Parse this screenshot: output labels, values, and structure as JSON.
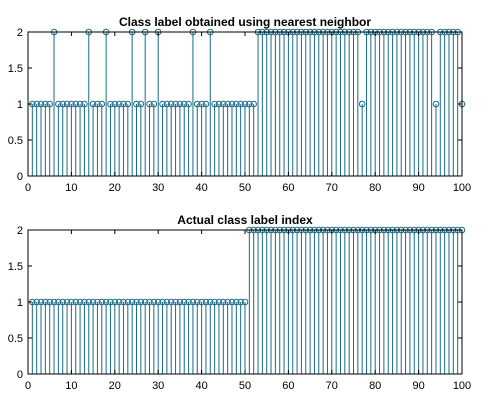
{
  "chart_data": [
    {
      "type": "stem",
      "title": "Class label obtained using nearest neighbor",
      "xlim": [
        0,
        100
      ],
      "ylim": [
        0,
        2
      ],
      "xticks": [
        0,
        10,
        20,
        30,
        40,
        50,
        60,
        70,
        80,
        90,
        100
      ],
      "yticks": [
        0,
        0.5,
        1,
        1.5,
        2
      ],
      "x": [
        1,
        2,
        3,
        4,
        5,
        6,
        7,
        8,
        9,
        10,
        11,
        12,
        13,
        14,
        15,
        16,
        17,
        18,
        19,
        20,
        21,
        22,
        23,
        24,
        25,
        26,
        27,
        28,
        29,
        30,
        31,
        32,
        33,
        34,
        35,
        36,
        37,
        38,
        39,
        40,
        41,
        42,
        43,
        44,
        45,
        46,
        47,
        48,
        49,
        50,
        51,
        52,
        53,
        54,
        55,
        56,
        57,
        58,
        59,
        60,
        61,
        62,
        63,
        64,
        65,
        66,
        67,
        68,
        69,
        70,
        71,
        72,
        73,
        74,
        75,
        76,
        77,
        78,
        79,
        80,
        81,
        82,
        83,
        84,
        85,
        86,
        87,
        88,
        89,
        90,
        91,
        92,
        93,
        94,
        95,
        96,
        97,
        98,
        99,
        100
      ],
      "values": [
        1,
        1,
        1,
        1,
        1,
        2,
        1,
        1,
        1,
        1,
        1,
        1,
        1,
        2,
        1,
        1,
        1,
        2,
        1,
        1,
        1,
        1,
        1,
        2,
        1,
        1,
        2,
        1,
        1,
        2,
        1,
        1,
        1,
        1,
        1,
        1,
        1,
        2,
        1,
        1,
        1,
        2,
        1,
        1,
        1,
        1,
        1,
        1,
        1,
        1,
        1,
        1,
        2,
        2,
        2,
        2,
        2,
        2,
        2,
        2,
        2,
        2,
        2,
        2,
        2,
        2,
        2,
        2,
        2,
        2,
        2,
        2,
        2,
        2,
        2,
        2,
        1,
        2,
        2,
        2,
        2,
        2,
        2,
        2,
        2,
        2,
        2,
        2,
        2,
        2,
        2,
        2,
        2,
        1,
        2,
        2,
        2,
        2,
        2,
        1
      ],
      "color": "#1a6b8a"
    },
    {
      "type": "stem",
      "title": "Actual class label index",
      "xlim": [
        0,
        100
      ],
      "ylim": [
        0,
        2
      ],
      "xticks": [
        0,
        10,
        20,
        30,
        40,
        50,
        60,
        70,
        80,
        90,
        100
      ],
      "yticks": [
        0,
        0.5,
        1,
        1.5,
        2
      ],
      "x": [
        1,
        2,
        3,
        4,
        5,
        6,
        7,
        8,
        9,
        10,
        11,
        12,
        13,
        14,
        15,
        16,
        17,
        18,
        19,
        20,
        21,
        22,
        23,
        24,
        25,
        26,
        27,
        28,
        29,
        30,
        31,
        32,
        33,
        34,
        35,
        36,
        37,
        38,
        39,
        40,
        41,
        42,
        43,
        44,
        45,
        46,
        47,
        48,
        49,
        50,
        51,
        52,
        53,
        54,
        55,
        56,
        57,
        58,
        59,
        60,
        61,
        62,
        63,
        64,
        65,
        66,
        67,
        68,
        69,
        70,
        71,
        72,
        73,
        74,
        75,
        76,
        77,
        78,
        79,
        80,
        81,
        82,
        83,
        84,
        85,
        86,
        87,
        88,
        89,
        90,
        91,
        92,
        93,
        94,
        95,
        96,
        97,
        98,
        99,
        100
      ],
      "values": [
        1,
        1,
        1,
        1,
        1,
        1,
        1,
        1,
        1,
        1,
        1,
        1,
        1,
        1,
        1,
        1,
        1,
        1,
        1,
        1,
        1,
        1,
        1,
        1,
        1,
        1,
        1,
        1,
        1,
        1,
        1,
        1,
        1,
        1,
        1,
        1,
        1,
        1,
        1,
        1,
        1,
        1,
        1,
        1,
        1,
        1,
        1,
        1,
        1,
        1,
        2,
        2,
        2,
        2,
        2,
        2,
        2,
        2,
        2,
        2,
        2,
        2,
        2,
        2,
        2,
        2,
        2,
        2,
        2,
        2,
        2,
        2,
        2,
        2,
        2,
        2,
        2,
        2,
        2,
        2,
        2,
        2,
        2,
        2,
        2,
        2,
        2,
        2,
        2,
        2,
        2,
        2,
        2,
        2,
        2,
        2,
        2,
        2,
        2,
        2
      ],
      "color": "#1a6b8a"
    }
  ]
}
